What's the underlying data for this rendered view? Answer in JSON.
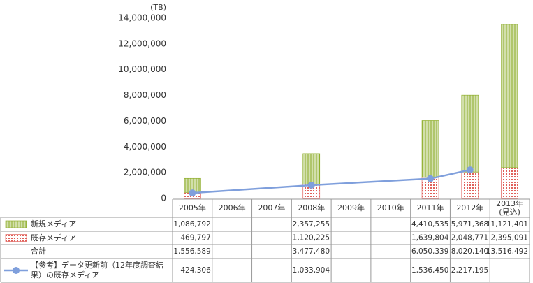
{
  "chart_data": {
    "type": "bar",
    "stacked": true,
    "span_gaps": true,
    "unit": "(TB)",
    "categories": [
      "2005年",
      "2006年",
      "2007年",
      "2008年",
      "2009年",
      "2010年",
      "2011年",
      "2012年",
      "2013年(見込)"
    ],
    "ylim": [
      0,
      14000000
    ],
    "yticks": [
      0,
      {
        "value": 2000000,
        "label": "2,000,000"
      },
      {
        "value": 4000000,
        "label": "4,000,000"
      },
      {
        "value": 6000000,
        "label": "6,000,000"
      },
      {
        "value": 8000000,
        "label": "8,000,000"
      },
      {
        "value": 10000000,
        "label": "10,000,000"
      },
      {
        "value": 12000000,
        "label": "12,000,000"
      },
      {
        "value": 14000000,
        "label": "14,000,000"
      }
    ],
    "series": [
      {
        "name": "新規メディア",
        "color": "#8fae2c",
        "pattern": "vertical-lines",
        "values": [
          1086792,
          null,
          null,
          2357255,
          null,
          null,
          4410535,
          5971368,
          11121401
        ],
        "value_labels": [
          "1,086,792",
          null,
          null,
          "2,357,255",
          null,
          null,
          "4,410,535",
          "5,971,368",
          "11,121,401"
        ]
      },
      {
        "name": "既存メディア",
        "color": "#e0605a",
        "pattern": "grid",
        "values": [
          469797,
          null,
          null,
          1120225,
          null,
          null,
          1639804,
          2048771,
          2395091
        ],
        "value_labels": [
          "469,797",
          null,
          null,
          "1,120,225",
          null,
          null,
          "1,639,804",
          "2,048,771",
          "2,395,091"
        ]
      },
      {
        "name": "【参考】データ更新前（12年度調査結果）の既存メディア",
        "type": "line",
        "color": "#7f9fdc",
        "values": [
          424306,
          null,
          null,
          1033904,
          null,
          null,
          1536450,
          2217195,
          null
        ],
        "value_labels": [
          "424,306",
          null,
          null,
          "1,033,904",
          null,
          null,
          "1,536,450",
          "2,217,195",
          null
        ]
      }
    ],
    "total": {
      "name": "合計",
      "values": [
        1556589,
        null,
        null,
        3477480,
        null,
        null,
        6050339,
        8020140,
        13516492
      ],
      "value_labels": [
        "1,556,589",
        null,
        null,
        "3,477,480",
        null,
        null,
        "6,050,339",
        "8,020,140",
        "13,516,492"
      ]
    }
  }
}
